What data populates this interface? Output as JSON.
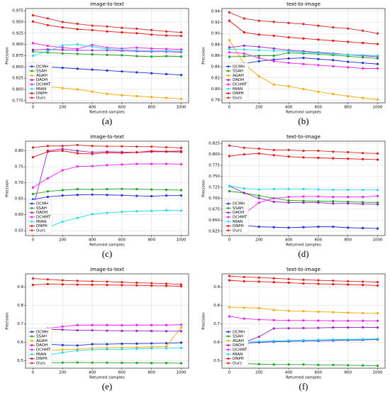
{
  "chart_data": [
    {
      "type": "line",
      "title": "image-to-text",
      "caption": "(a)",
      "x_label": "Returned samples",
      "y_label": "Precision",
      "x": [
        0,
        100,
        200,
        300,
        400,
        500,
        600,
        700,
        800,
        900,
        1000
      ],
      "xlim": [
        -50,
        1050
      ],
      "xticks": [
        0,
        200,
        400,
        600,
        800,
        1000
      ],
      "ylim": [
        0.77,
        0.98
      ],
      "yticks": [
        0.775,
        {
          "value": 0.8,
          "label": "0.800"
        },
        0.825,
        {
          "value": 0.85,
          "label": "0.850"
        },
        0.875,
        {
          "value": 0.9,
          "label": "0.900"
        },
        0.925,
        {
          "value": 0.95,
          "label": "0.950"
        },
        0.975
      ],
      "grid": true,
      "legend": "lower left",
      "series": [
        {
          "name": "DCMH",
          "color": "#1f2fd0",
          "values": [
            0.856,
            0.85,
            0.848,
            0.846,
            0.844,
            0.842,
            0.84,
            0.838,
            0.836,
            0.834,
            0.832
          ]
        },
        {
          "name": "SSAH",
          "color": "#1aa31a",
          "values": [
            0.884,
            0.882,
            0.88,
            0.879,
            0.878,
            0.877,
            0.876,
            0.874,
            0.873,
            0.874,
            0.873
          ]
        },
        {
          "name": "AGAH",
          "color": "#f5a800",
          "values": [
            0.81,
            0.806,
            0.803,
            0.8,
            0.795,
            0.79,
            0.787,
            0.785,
            0.783,
            0.781,
            0.779
          ]
        },
        {
          "name": "DADH",
          "color": "#9b22c8",
          "values": [
            0.888,
            0.889,
            0.888,
            0.887,
            0.887,
            0.887,
            0.886,
            0.885,
            0.884,
            0.884,
            0.883
          ]
        },
        {
          "name": "DCHMT",
          "color": "#ee22ee",
          "values": [
            0.903,
            0.897,
            0.893,
            0.89,
            0.899,
            0.893,
            0.891,
            0.893,
            0.891,
            0.89,
            0.889
          ]
        },
        {
          "name": "MIAN",
          "color": "#22d8ee",
          "values": [
            0.875,
            0.885,
            0.898,
            0.9,
            0.895,
            0.89,
            0.888,
            0.887,
            0.886,
            0.886,
            0.885
          ]
        },
        {
          "name": "DNPH",
          "color": "#e81414",
          "values": [
            0.951,
            0.943,
            0.938,
            0.934,
            0.932,
            0.929,
            0.927,
            0.925,
            0.922,
            0.92,
            0.919
          ]
        },
        {
          "name": "Ours",
          "color": "#d42a2a",
          "values": [
            0.965,
            0.958,
            0.95,
            0.946,
            0.942,
            0.94,
            0.937,
            0.935,
            0.932,
            0.929,
            0.927
          ]
        }
      ]
    },
    {
      "type": "line",
      "title": "text-to-image",
      "caption": "(b)",
      "x_label": "Returned samples",
      "y_label": "Precision",
      "x": [
        0,
        100,
        200,
        300,
        400,
        500,
        600,
        700,
        800,
        900,
        1000
      ],
      "xlim": [
        -50,
        1050
      ],
      "xticks": [
        0,
        200,
        400,
        600,
        800,
        1000
      ],
      "ylim": [
        0.775,
        0.945
      ],
      "yticks": [
        0.78,
        {
          "value": 0.8,
          "label": "0.80"
        },
        0.82,
        0.84,
        0.86,
        0.88,
        {
          "value": 0.9,
          "label": "0.90"
        },
        0.92,
        0.94
      ],
      "grid": true,
      "legend": "lower left",
      "series": [
        {
          "name": "DCMH",
          "color": "#1f2fd0",
          "values": [
            0.838,
            0.846,
            0.85,
            0.853,
            0.855,
            0.856,
            0.854,
            0.852,
            0.849,
            0.847,
            0.845
          ]
        },
        {
          "name": "SSAH",
          "color": "#1aa31a",
          "values": [
            0.858,
            0.859,
            0.86,
            0.86,
            0.865,
            0.864,
            0.863,
            0.861,
            0.859,
            0.857,
            0.855
          ]
        },
        {
          "name": "AGAH",
          "color": "#f5a800",
          "values": [
            0.888,
            0.845,
            0.823,
            0.808,
            0.805,
            0.8,
            0.795,
            0.791,
            0.787,
            0.784,
            0.781
          ]
        },
        {
          "name": "DADH",
          "color": "#9b22c8",
          "values": [
            0.875,
            0.878,
            0.876,
            0.873,
            0.87,
            0.868,
            0.866,
            0.864,
            0.862,
            0.86,
            0.858
          ]
        },
        {
          "name": "DCHMT",
          "color": "#ee22ee",
          "values": [
            0.866,
            0.864,
            0.856,
            0.85,
            0.847,
            0.845,
            0.843,
            0.841,
            0.839,
            0.837,
            0.837
          ]
        },
        {
          "name": "MIAN",
          "color": "#22d8ee",
          "values": [
            0.872,
            0.871,
            0.87,
            0.869,
            0.868,
            0.866,
            0.865,
            0.863,
            0.862,
            0.861,
            0.86
          ]
        },
        {
          "name": "DNPH",
          "color": "#e81414",
          "values": [
            0.923,
            0.902,
            0.898,
            0.896,
            0.893,
            0.891,
            0.889,
            0.887,
            0.885,
            0.883,
            0.881
          ]
        },
        {
          "name": "Ours",
          "color": "#d42a2a",
          "values": [
            0.938,
            0.927,
            0.923,
            0.921,
            0.919,
            0.917,
            0.914,
            0.911,
            0.909,
            0.905,
            0.9
          ]
        }
      ]
    },
    {
      "type": "line",
      "title": "image-to-text",
      "caption": "(c)",
      "x_label": "Returned samples",
      "y_label": "Precision",
      "x": [
        0,
        100,
        200,
        300,
        400,
        500,
        600,
        700,
        800,
        900,
        1000
      ],
      "xlim": [
        -50,
        1050
      ],
      "xticks": [
        0,
        200,
        400,
        600,
        800,
        1000
      ],
      "ylim": [
        0.535,
        0.83
      ],
      "yticks": [
        0.55,
        {
          "value": 0.6,
          "label": "0.60"
        },
        0.65,
        {
          "value": 0.7,
          "label": "0.70"
        },
        0.75,
        {
          "value": 0.8,
          "label": "0.80"
        }
      ],
      "grid": true,
      "legend": "lower left",
      "series": [
        {
          "name": "DCMH",
          "color": "#1f2fd0",
          "values": [
            0.648,
            0.656,
            0.66,
            0.662,
            0.663,
            0.662,
            0.661,
            0.659,
            0.658,
            0.66,
            0.66
          ]
        },
        {
          "name": "SSAH",
          "color": "#1aa31a",
          "values": [
            0.665,
            0.673,
            0.677,
            0.68,
            0.679,
            0.68,
            0.681,
            0.68,
            0.679,
            0.678,
            0.677
          ]
        },
        {
          "name": "DADH",
          "color": "#9b22c8",
          "values": [
            0.62,
            0.8,
            0.806,
            0.8,
            0.795,
            0.797,
            0.796,
            0.795,
            0.797,
            0.797,
            0.796
          ]
        },
        {
          "name": "DCHMT",
          "color": "#ee22ee",
          "values": [
            0.685,
            0.714,
            0.739,
            0.751,
            0.752,
            0.755,
            0.757,
            0.759,
            0.759,
            0.759,
            0.758
          ]
        },
        {
          "name": "MIAN",
          "color": "#22d8ee",
          "values": [
            null,
            0.56,
            0.578,
            0.59,
            0.602,
            0.606,
            0.609,
            0.611,
            0.612,
            0.614,
            0.613
          ]
        },
        {
          "name": "DNPH",
          "color": "#e81414",
          "values": [
            0.78,
            0.797,
            0.8,
            0.792,
            0.79,
            0.794,
            0.793,
            0.795,
            0.799,
            0.798,
            0.799
          ]
        },
        {
          "name": "Ours",
          "color": "#d42a2a",
          "values": [
            0.81,
            0.815,
            0.815,
            0.818,
            0.815,
            0.814,
            0.814,
            0.813,
            0.813,
            0.811,
            0.809
          ]
        }
      ]
    },
    {
      "type": "line",
      "title": "text-to-image",
      "caption": "(d)",
      "x_label": "Returned samples",
      "y_label": "Precision",
      "x": [
        0,
        100,
        200,
        300,
        400,
        500,
        600,
        700,
        800,
        900,
        1000
      ],
      "xlim": [
        -50,
        1050
      ],
      "xticks": [
        0,
        200,
        400,
        600,
        800,
        1000
      ],
      "ylim": [
        0.615,
        0.83
      ],
      "yticks": [
        0.625,
        {
          "value": 0.65,
          "label": "0.650"
        },
        0.675,
        {
          "value": 0.7,
          "label": "0.700"
        },
        0.725,
        {
          "value": 0.75,
          "label": "0.750"
        },
        0.775,
        {
          "value": 0.8,
          "label": "0.800"
        },
        0.825
      ],
      "grid": true,
      "legend": "lower left",
      "series": [
        {
          "name": "DCMH",
          "color": "#1f2fd0",
          "values": [
            0.64,
            0.638,
            0.635,
            0.634,
            0.633,
            0.634,
            0.635,
            0.635,
            0.633,
            0.632,
            0.631
          ]
        },
        {
          "name": "SSAH",
          "color": "#1aa31a",
          "values": [
            0.716,
            0.712,
            0.706,
            0.7,
            0.695,
            0.694,
            0.693,
            0.693,
            0.692,
            0.691,
            0.69
          ]
        },
        {
          "name": "DADH",
          "color": "#9b22c8",
          "values": [
            0.728,
            0.712,
            0.7,
            0.692,
            0.69,
            0.69,
            0.69,
            0.688,
            0.688,
            0.687,
            0.686
          ]
        },
        {
          "name": "DCHMT",
          "color": "#ee22ee",
          "values": [
            null,
            0.665,
            0.69,
            0.7,
            0.703,
            0.704,
            0.704,
            0.703,
            0.703,
            0.703,
            0.705
          ]
        },
        {
          "name": "MIAN",
          "color": "#22d8ee",
          "values": [
            0.728,
            0.722,
            0.72,
            0.721,
            0.721,
            0.721,
            0.72,
            0.719,
            0.719,
            0.719,
            0.719
          ]
        },
        {
          "name": "DNPH",
          "color": "#e81414",
          "values": [
            0.796,
            0.8,
            0.802,
            0.798,
            0.795,
            0.793,
            0.792,
            0.791,
            0.79,
            0.789,
            0.788
          ]
        },
        {
          "name": "Ours",
          "color": "#d42a2a",
          "values": [
            0.82,
            0.815,
            0.813,
            0.81,
            0.81,
            0.808,
            0.808,
            0.806,
            0.805,
            0.803,
            0.802
          ]
        }
      ]
    },
    {
      "type": "line",
      "title": "image-to-text",
      "caption": "(e)",
      "x_label": "Returned samples",
      "y_label": "Precision",
      "x": [
        0,
        100,
        200,
        300,
        400,
        500,
        600,
        700,
        800,
        900,
        1000
      ],
      "xlim": [
        -50,
        1050
      ],
      "xticks": [
        0,
        200,
        400,
        600,
        800,
        1000
      ],
      "ylim": [
        0.46,
        0.97
      ],
      "yticks": [
        0.5,
        0.6,
        0.7,
        0.8,
        0.9
      ],
      "grid": true,
      "legend": "lower left",
      "series": [
        {
          "name": "DCMH",
          "color": "#1f2fd0",
          "values": [
            null,
            0.59,
            0.585,
            0.583,
            0.59,
            0.59,
            0.592,
            0.593,
            0.594,
            0.595,
            0.598
          ]
        },
        {
          "name": "SSAH",
          "color": "#1aa31a",
          "values": [
            0.485,
            0.49,
            0.49,
            0.491,
            0.49,
            0.49,
            0.489,
            0.489,
            0.488,
            0.488,
            0.487
          ]
        },
        {
          "name": "AGAH",
          "color": "#f5a800",
          "values": [
            null,
            0.555,
            0.56,
            0.563,
            0.568,
            0.57,
            0.572,
            0.573,
            0.575,
            0.578,
            0.68
          ]
        },
        {
          "name": "DADH",
          "color": "#9b22c8",
          "values": [
            0.665,
            0.67,
            0.668,
            0.665,
            0.665,
            0.663,
            0.662,
            0.662,
            0.661,
            0.66,
            0.66
          ]
        },
        {
          "name": "DCHMT",
          "color": "#ee22ee",
          "values": [
            0.66,
            0.675,
            0.685,
            0.693,
            0.693,
            0.693,
            0.692,
            0.693,
            0.693,
            0.693,
            0.695
          ]
        },
        {
          "name": "MIAN",
          "color": "#22d8ee",
          "values": [
            null,
            0.53,
            0.545,
            0.555,
            0.56,
            0.562,
            0.563,
            0.565,
            0.567,
            0.568,
            0.57
          ]
        },
        {
          "name": "DNPH",
          "color": "#e81414",
          "values": [
            0.91,
            0.915,
            0.913,
            0.912,
            0.911,
            0.91,
            0.909,
            0.908,
            0.906,
            0.905,
            0.903
          ]
        },
        {
          "name": "Ours",
          "color": "#d42a2a",
          "values": [
            0.945,
            0.94,
            0.935,
            0.932,
            0.93,
            0.928,
            0.925,
            0.922,
            0.92,
            0.917,
            0.913
          ]
        }
      ]
    },
    {
      "type": "line",
      "title": "text-to-image",
      "caption": "(f)",
      "x_label": "Returned samples",
      "y_label": "Precision",
      "x": [
        0,
        100,
        200,
        300,
        400,
        500,
        600,
        700,
        800,
        900,
        1000
      ],
      "xlim": [
        -50,
        1050
      ],
      "xticks": [
        0,
        200,
        400,
        600,
        800,
        1000
      ],
      "ylim": [
        0.46,
        0.97
      ],
      "yticks": [
        0.5,
        0.6,
        0.7,
        0.8,
        0.9
      ],
      "grid": true,
      "legend": "lower left",
      "series": [
        {
          "name": "DCMH",
          "color": "#1f2fd0",
          "values": [
            null,
            0.595,
            0.6,
            0.603,
            0.605,
            0.607,
            0.608,
            0.61,
            0.612,
            0.613,
            0.615
          ]
        },
        {
          "name": "SSAH",
          "color": "#1aa31a",
          "values": [
            0.49,
            0.485,
            0.482,
            0.48,
            0.48,
            0.48,
            0.478,
            0.478,
            0.476,
            0.475,
            0.473
          ]
        },
        {
          "name": "AGAH",
          "color": "#f5a800",
          "values": [
            0.79,
            0.787,
            0.785,
            0.775,
            0.77,
            0.768,
            0.765,
            0.763,
            0.76,
            0.758,
            0.757
          ]
        },
        {
          "name": "DADH",
          "color": "#9b22c8",
          "values": [
            null,
            0.6,
            0.63,
            0.675,
            0.676,
            0.677,
            0.678,
            0.68,
            0.68,
            0.681,
            0.68
          ]
        },
        {
          "name": "DCHMT",
          "color": "#ee22ee",
          "values": [
            0.74,
            0.728,
            0.723,
            0.72,
            0.718,
            0.718,
            0.717,
            0.716,
            0.716,
            0.716,
            0.716
          ]
        },
        {
          "name": "MIAN",
          "color": "#22d8ee",
          "values": [
            null,
            0.605,
            0.605,
            0.608,
            0.61,
            0.612,
            0.614,
            0.615,
            0.616,
            0.617,
            0.619
          ]
        },
        {
          "name": "DNPH",
          "color": "#e81414",
          "values": [
            0.935,
            0.93,
            0.928,
            0.925,
            0.922,
            0.918,
            0.916,
            0.914,
            0.912,
            0.91,
            0.907
          ]
        },
        {
          "name": "Ours",
          "color": "#d42a2a",
          "values": [
            0.958,
            0.953,
            0.95,
            0.946,
            0.942,
            0.938,
            0.935,
            0.933,
            0.93,
            0.928,
            0.925
          ]
        }
      ]
    }
  ]
}
